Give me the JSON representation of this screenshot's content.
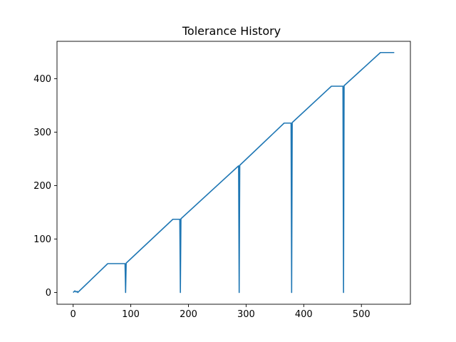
{
  "chart_data": {
    "type": "line",
    "title": "Tolerance History",
    "xlabel": "",
    "ylabel": "",
    "xlim": [
      -28,
      585
    ],
    "ylim": [
      -22,
      470
    ],
    "xticks": [
      0,
      100,
      200,
      300,
      400,
      500
    ],
    "yticks": [
      0,
      100,
      200,
      300,
      400
    ],
    "grid": false,
    "legend": "none",
    "series": [
      {
        "color": "#1f77b4",
        "points": [
          [
            0,
            0
          ],
          [
            3,
            3
          ],
          [
            5,
            1
          ],
          [
            7,
            2
          ],
          [
            8,
            0
          ],
          [
            60,
            54
          ],
          [
            90,
            54
          ],
          [
            91,
            0
          ],
          [
            92,
            55
          ],
          [
            173,
            137
          ],
          [
            185,
            137
          ],
          [
            186,
            0
          ],
          [
            187,
            138
          ],
          [
            287,
            237
          ],
          [
            288,
            0
          ],
          [
            289,
            238
          ],
          [
            366,
            317
          ],
          [
            378,
            317
          ],
          [
            379,
            0
          ],
          [
            380,
            318
          ],
          [
            448,
            386
          ],
          [
            468,
            386
          ],
          [
            469,
            0
          ],
          [
            470,
            387
          ],
          [
            533,
            449
          ],
          [
            557,
            449
          ]
        ]
      }
    ]
  }
}
